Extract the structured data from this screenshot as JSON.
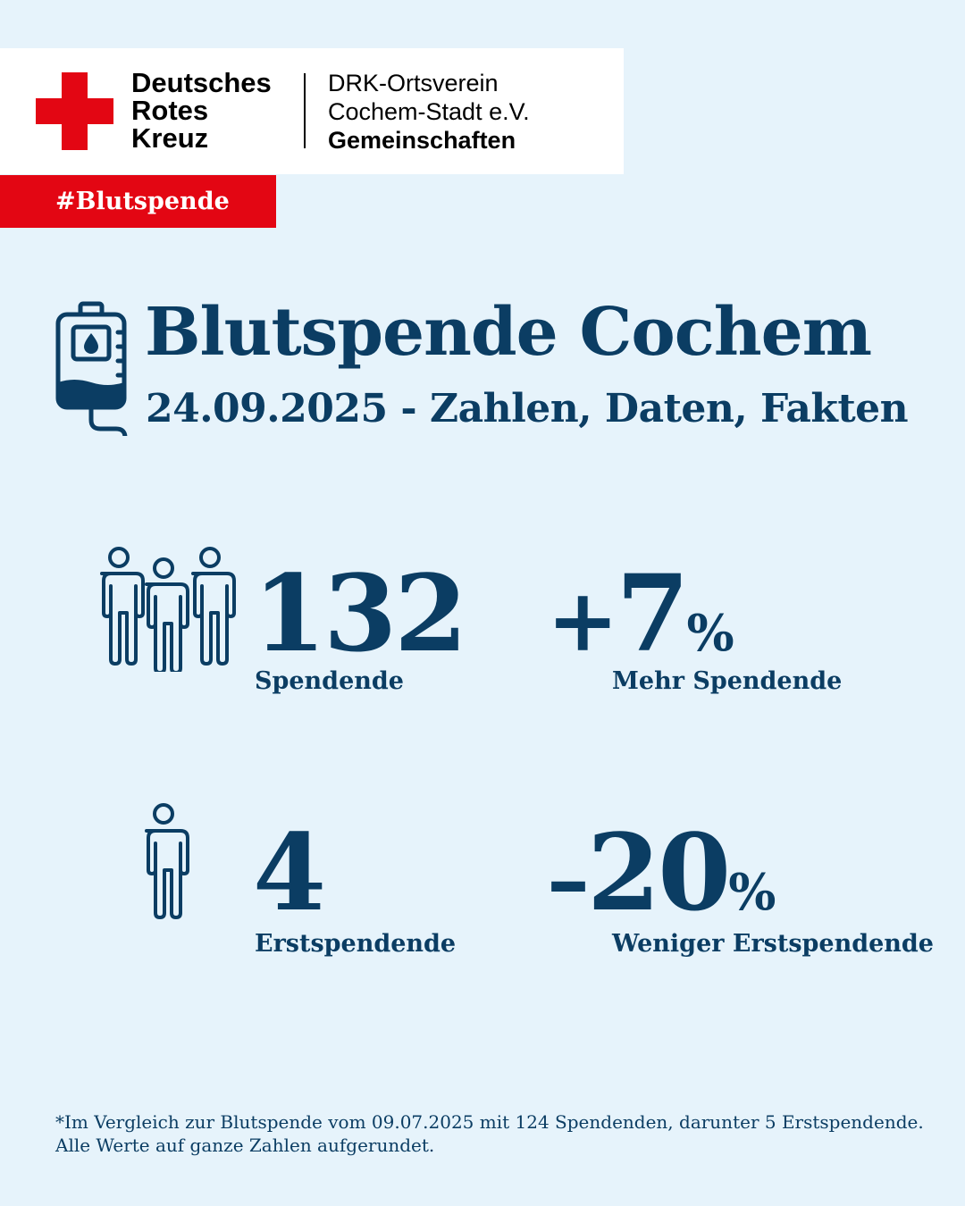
{
  "header": {
    "logo_lines": [
      "Deutsches",
      "Rotes",
      "Kreuz"
    ],
    "org_line1": "DRK-Ortsverein",
    "org_line2": "Cochem-Stadt e.V.",
    "org_line3": "Gemeinschaften"
  },
  "hashtag": "#Blutspende",
  "title": "Blutspende Cochem",
  "subtitle": "24.09.2025 - Zahlen, Daten, Fakten",
  "stats": {
    "donors": {
      "value": "132",
      "label": "Spendende"
    },
    "donors_change": {
      "sign": "+",
      "value": "7",
      "unit": "%",
      "label": "Mehr Spendende"
    },
    "first_time": {
      "value": "4",
      "label": "Erstspendende"
    },
    "first_time_change": {
      "sign": "–",
      "value": "20",
      "unit": "%",
      "label": "Weniger Erstspendende"
    }
  },
  "footnote": {
    "line1": "*Im Vergleich zur Blutspende vom 09.07.2025 mit 124 Spendenden, darunter 5 Erstspendende.",
    "line2": "Alle Werte auf ganze Zahlen aufgerundet."
  },
  "colors": {
    "navy": "#0b3d63",
    "red": "#e30613",
    "background": "#e6f3fb"
  },
  "icons": [
    "red-cross-icon",
    "blood-bag-icon",
    "three-persons-icon",
    "single-person-icon"
  ]
}
